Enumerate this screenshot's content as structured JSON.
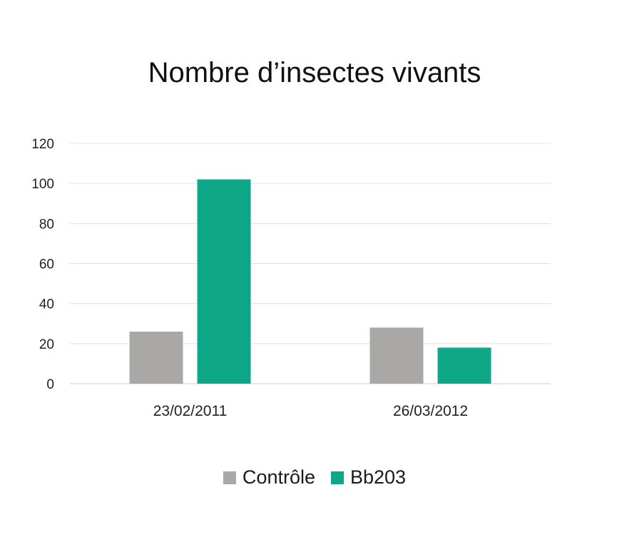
{
  "chart_data": {
    "type": "bar",
    "title": "Nombre d’insectes vivants",
    "xlabel": "",
    "ylabel": "",
    "categories": [
      "23/02/2011",
      "26/03/2012"
    ],
    "series": [
      {
        "name": "Contrôle",
        "color": "#aaa8a7",
        "values": [
          26,
          28
        ]
      },
      {
        "name": "Bb203",
        "color": "#0ea888",
        "values": [
          102,
          18
        ]
      }
    ],
    "ylim": [
      0,
      120
    ],
    "yticks": [
      0,
      20,
      40,
      60,
      80,
      100,
      120
    ],
    "grid": true,
    "legend": "bottom"
  }
}
